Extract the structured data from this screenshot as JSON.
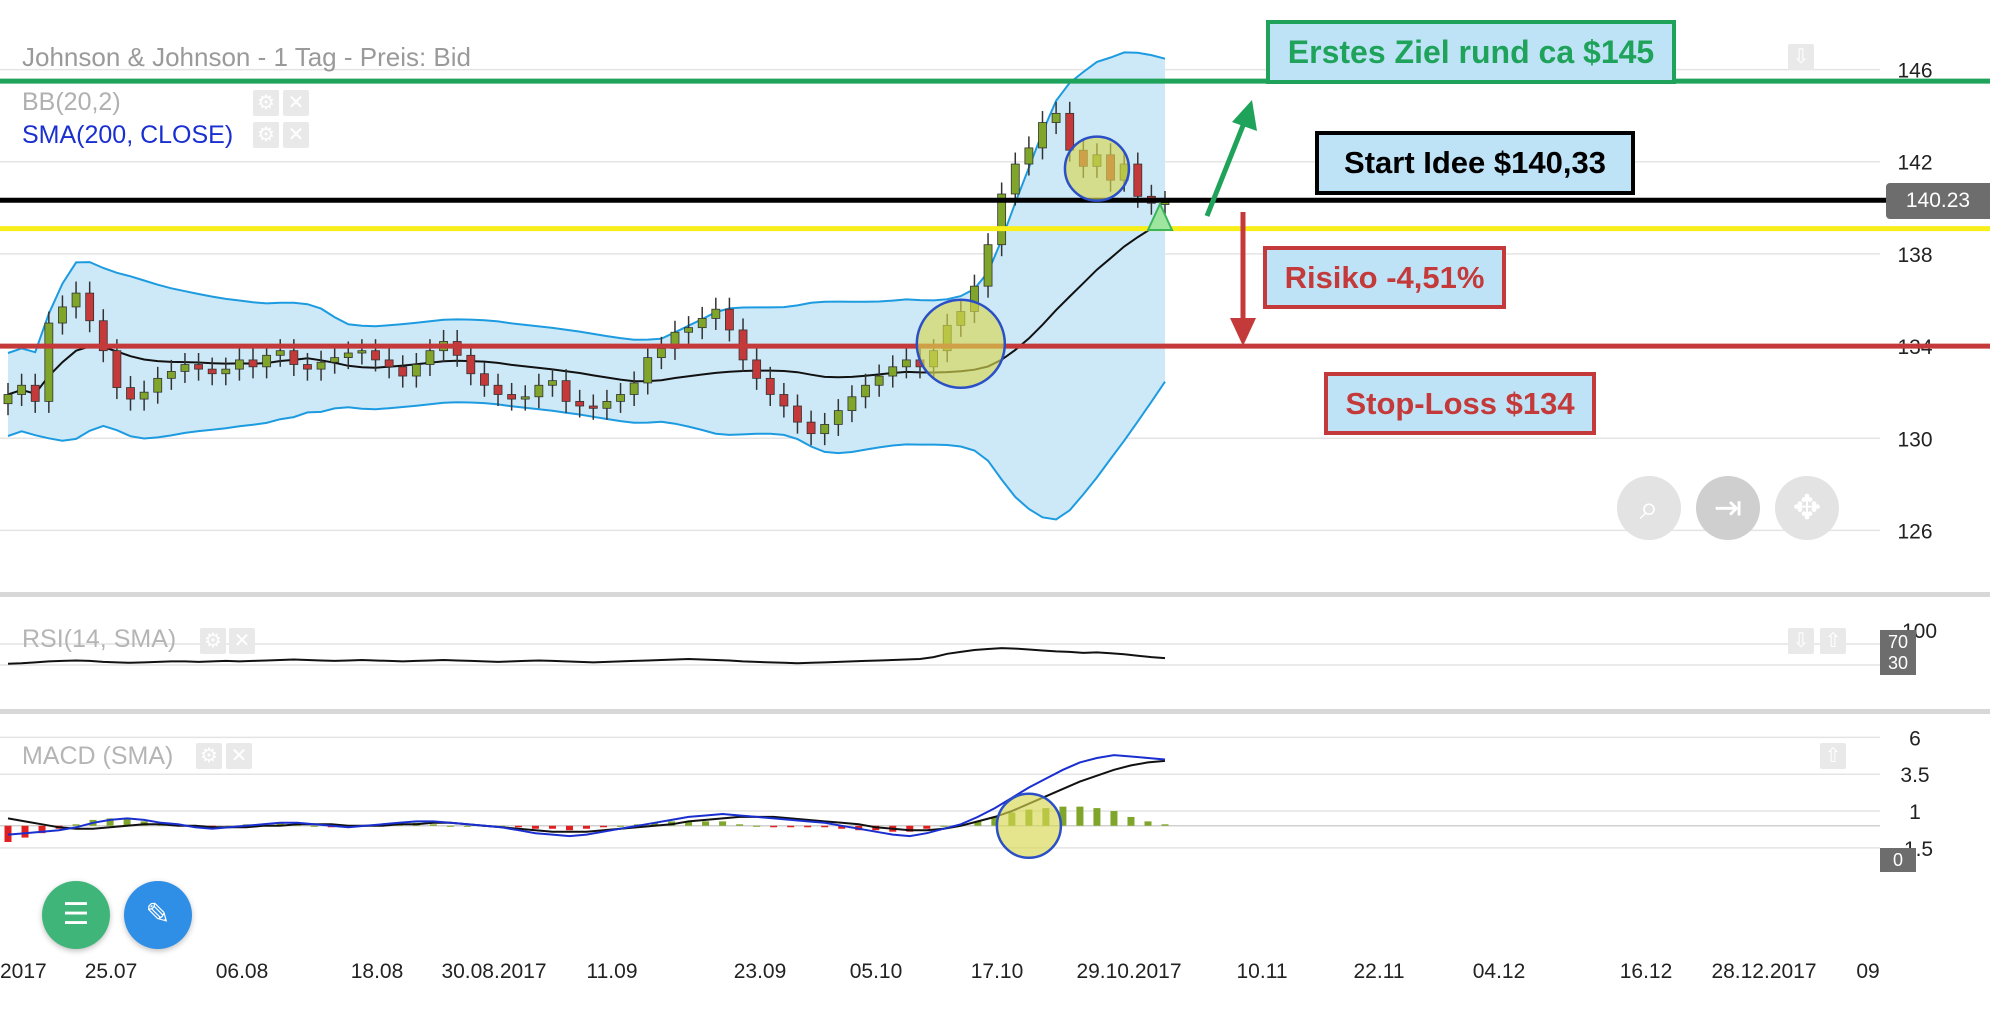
{
  "header": {
    "title": "Johnson & Johnson - 1 Tag - Preis: Bid",
    "bb_label": "BB(20,2)",
    "sma_label": "SMA(200, CLOSE)",
    "rsi_label": "RSI(14, SMA)",
    "macd_label": "MACD (SMA)"
  },
  "annotations": {
    "goal": "Erstes Ziel rund ca $145",
    "start": "Start Idee $140,33",
    "risk": "Risiko -4,51%",
    "stop": "Stop-Loss $134"
  },
  "price_tag": "140.23",
  "rsi_tags": {
    "upper": "70",
    "lower": "30",
    "scale": "100"
  },
  "macd_tag": "0",
  "icons": {
    "gear": "gear-icon",
    "close": "close-icon",
    "zoom": "zoom-in-icon",
    "jump": "jump-to-end-icon",
    "pan": "pan-icon",
    "menu": "menu-icon",
    "edit": "pencil-icon",
    "arrow": "arrow-down-icon"
  },
  "colors": {
    "goal_line": "#1fa25a",
    "start_line": "#000000",
    "entry_line": "#f7ee1a",
    "stop_line": "#c43a3a",
    "bollinger_fill": "#cde9f8",
    "bollinger_line": "#1d9be0",
    "sma_line": "#111111",
    "bull_candle": "#7fa52b",
    "bear_candle": "#c43a3a",
    "macd_line": "#1a2fd0",
    "signal_line": "#111111",
    "fab_menu": "#3fb57a",
    "fab_edit": "#2f8ee6"
  },
  "chart_data": {
    "type": "candlestick",
    "title": "Johnson & Johnson - 1 Tag - Preis: Bid",
    "x_tick_labels": [
      "2017",
      "25.07",
      "06.08",
      "18.08",
      "30.08.2017",
      "11.09",
      "23.09",
      "05.10",
      "17.10",
      "29.10.2017",
      "10.11",
      "22.11",
      "04.12",
      "16.12",
      "28.12.2017",
      "09"
    ],
    "y_ticks": [
      126,
      130,
      134,
      138,
      142,
      146
    ],
    "ylim": [
      124.5,
      147.5
    ],
    "levels": {
      "goal": 145.5,
      "start": 140.33,
      "entry": 139.1,
      "stop": 134
    },
    "close": [
      131.9,
      132.3,
      131.6,
      135.0,
      135.7,
      136.3,
      135.1,
      133.8,
      132.2,
      131.7,
      132.0,
      132.6,
      132.9,
      133.2,
      133.0,
      132.8,
      133.0,
      133.4,
      133.1,
      133.6,
      133.8,
      133.2,
      133.0,
      133.3,
      133.5,
      133.7,
      133.8,
      133.4,
      133.1,
      132.7,
      133.2,
      133.8,
      134.2,
      133.6,
      132.8,
      132.3,
      131.9,
      131.7,
      131.8,
      132.3,
      132.5,
      131.6,
      131.4,
      131.3,
      131.6,
      131.9,
      132.4,
      133.5,
      133.9,
      134.6,
      134.8,
      135.2,
      135.6,
      134.7,
      133.4,
      132.6,
      131.9,
      131.4,
      130.7,
      130.2,
      130.6,
      131.2,
      131.8,
      132.3,
      132.7,
      133.1,
      133.4,
      133.1,
      133.8,
      134.9,
      135.5,
      136.6,
      138.4,
      140.6,
      141.9,
      142.6,
      143.7,
      144.1,
      142.5,
      141.8,
      142.3,
      141.2,
      141.9,
      140.5,
      140.2,
      140.23
    ],
    "rsi": {
      "upper": 70,
      "lower": 30,
      "values": [
        41,
        42,
        44,
        46,
        47,
        48,
        47,
        45,
        44,
        43,
        44,
        45,
        46,
        46,
        45,
        46,
        47,
        46,
        47,
        48,
        49,
        50,
        49,
        48,
        47,
        48,
        49,
        48,
        47,
        46,
        47,
        48,
        49,
        48,
        47,
        46,
        45,
        46,
        47,
        48,
        47,
        46,
        45,
        44,
        45,
        46,
        47,
        48,
        49,
        50,
        51,
        50,
        49,
        48,
        46,
        45,
        44,
        43,
        42,
        43,
        44,
        45,
        46,
        47,
        48,
        49,
        50,
        51,
        55,
        62,
        66,
        70,
        72,
        74,
        73,
        71,
        69,
        67,
        66,
        64,
        65,
        63,
        61,
        58,
        55,
        53
      ]
    },
    "macd": {
      "y_ticks": [
        -1.5,
        1,
        3.5,
        6
      ],
      "ylim": [
        -3.0,
        6.5
      ],
      "macd": [
        -0.6,
        -0.5,
        -0.4,
        -0.3,
        -0.1,
        0.2,
        0.4,
        0.5,
        0.4,
        0.2,
        0.1,
        -0.1,
        -0.2,
        -0.1,
        0.0,
        0.1,
        0.2,
        0.2,
        0.1,
        0.0,
        -0.1,
        0.0,
        0.1,
        0.2,
        0.3,
        0.3,
        0.2,
        0.1,
        0.0,
        -0.1,
        -0.3,
        -0.5,
        -0.6,
        -0.7,
        -0.6,
        -0.4,
        -0.2,
        0.0,
        0.2,
        0.4,
        0.6,
        0.7,
        0.8,
        0.7,
        0.6,
        0.5,
        0.4,
        0.3,
        0.2,
        0.0,
        -0.2,
        -0.4,
        -0.6,
        -0.7,
        -0.5,
        -0.2,
        0.1,
        0.6,
        1.2,
        1.9,
        2.6,
        3.2,
        3.8,
        4.3,
        4.6,
        4.8,
        4.7,
        4.6,
        4.5
      ],
      "signal": [
        0.5,
        0.3,
        0.1,
        -0.1,
        -0.2,
        -0.2,
        -0.1,
        0.0,
        0.1,
        0.1,
        0.0,
        0.0,
        -0.1,
        -0.1,
        -0.1,
        0.0,
        0.0,
        0.1,
        0.1,
        0.1,
        0.0,
        0.0,
        0.0,
        0.1,
        0.1,
        0.2,
        0.2,
        0.1,
        0.0,
        -0.1,
        -0.2,
        -0.3,
        -0.4,
        -0.4,
        -0.4,
        -0.3,
        -0.2,
        -0.1,
        0.0,
        0.1,
        0.3,
        0.4,
        0.5,
        0.6,
        0.6,
        0.6,
        0.5,
        0.4,
        0.3,
        0.2,
        0.1,
        -0.1,
        -0.2,
        -0.3,
        -0.3,
        -0.2,
        0.0,
        0.3,
        0.6,
        1.0,
        1.5,
        2.0,
        2.5,
        3.0,
        3.4,
        3.8,
        4.1,
        4.3,
        4.4
      ],
      "hist": [
        -1.1,
        -0.8,
        -0.5,
        -0.2,
        0.1,
        0.4,
        0.5,
        0.5,
        0.3,
        0.1,
        0.1,
        -0.1,
        -0.1,
        0.0,
        0.1,
        0.1,
        0.2,
        0.1,
        0.0,
        -0.1,
        -0.1,
        0.0,
        0.1,
        0.1,
        0.2,
        0.1,
        0.0,
        0.0,
        0.0,
        0.0,
        -0.1,
        -0.2,
        -0.2,
        -0.3,
        -0.2,
        -0.1,
        0.0,
        0.1,
        0.2,
        0.3,
        0.3,
        0.3,
        0.3,
        0.1,
        0.0,
        -0.1,
        -0.1,
        -0.1,
        -0.1,
        -0.2,
        -0.3,
        -0.3,
        -0.4,
        -0.4,
        -0.2,
        0.0,
        0.1,
        0.3,
        0.6,
        0.9,
        1.1,
        1.2,
        1.3,
        1.3,
        1.2,
        1.0,
        0.6,
        0.3,
        0.1
      ]
    }
  }
}
